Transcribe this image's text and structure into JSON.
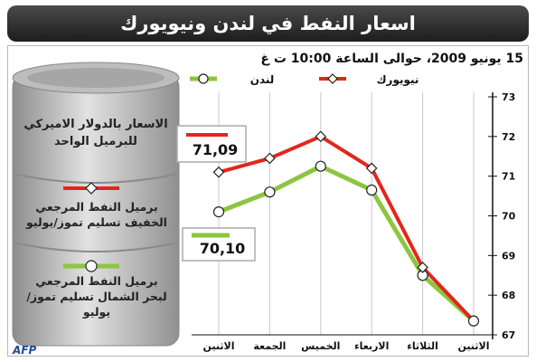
{
  "header": {
    "title": "اسعار النفط في لندن ونيويورك"
  },
  "date_line": "15 يونيو 2009، حوالى الساعة 10:00 ت غ",
  "barrel": {
    "unit_label": "الاسعار بالدولار الاميركي للبرميل الواحد",
    "legend_ny": "برميل النفط المرجعي الخفيف تسليم تموز/يوليو",
    "legend_london": "برميل النفط المرجعي لبحر الشمال تسليم تموز/يوليو"
  },
  "source": "AFP",
  "colors": {
    "new_york": "#e3261b",
    "london": "#8cc63f",
    "marker_fill": "#ffffff"
  },
  "chart_data": {
    "type": "line",
    "x": [
      "الاثنين",
      "الجمعة",
      "الخميس",
      "الاربعاء",
      "الثلاثاء",
      "الاثنين"
    ],
    "series": [
      {
        "name": "نيويورك",
        "values": [
          71.1,
          71.45,
          72.0,
          71.2,
          68.7,
          67.35
        ],
        "last_label": "71,09"
      },
      {
        "name": "لندن",
        "values": [
          70.1,
          70.6,
          71.25,
          70.65,
          68.5,
          67.35
        ],
        "last_label": "70,10"
      }
    ],
    "ylim": [
      67,
      73
    ],
    "yticks": [
      "73",
      "72",
      "71",
      "70",
      "69",
      "68",
      "67"
    ],
    "grid": "vertical",
    "legend_position": "top"
  }
}
